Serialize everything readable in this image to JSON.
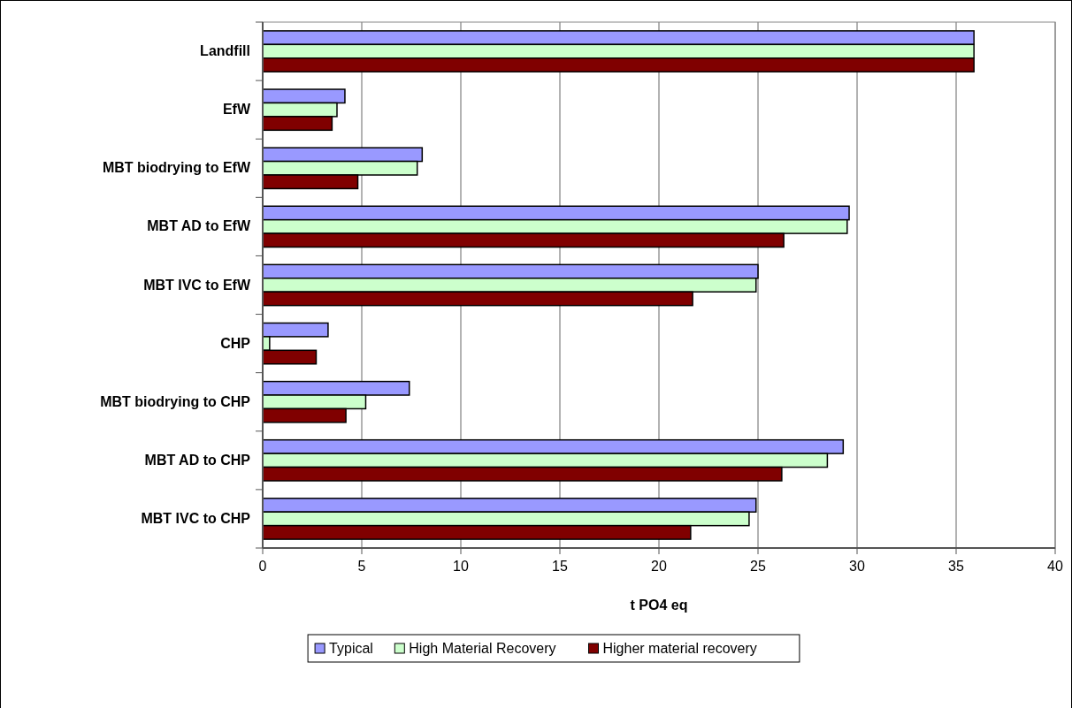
{
  "chart_data": {
    "type": "bar",
    "orientation": "horizontal",
    "xlabel": "t PO4 eq",
    "categories": [
      "Landfill",
      "EfW",
      "MBT biodrying to EfW",
      "MBT AD to EfW",
      "MBT IVC to EfW",
      "CHP",
      "MBT biodrying to CHP",
      "MBT AD to CHP",
      "MBT IVC to CHP"
    ],
    "series": [
      {
        "name": "Typical",
        "color": "#9999ff",
        "values": [
          35.9,
          4.15,
          8.05,
          29.6,
          25.0,
          3.3,
          7.4,
          29.3,
          24.9
        ]
      },
      {
        "name": "High Material Recovery",
        "color": "#ccffcc",
        "values": [
          35.9,
          3.75,
          7.8,
          29.5,
          24.9,
          0.35,
          5.2,
          28.5,
          24.55
        ]
      },
      {
        "name": "Higher material recovery",
        "color": "#800000",
        "values": [
          35.9,
          3.5,
          4.8,
          26.3,
          21.7,
          2.7,
          4.2,
          26.2,
          21.6
        ]
      }
    ],
    "xlim": [
      0,
      40
    ],
    "xticks": [
      0,
      5,
      10,
      15,
      20,
      25,
      30,
      35,
      40
    ],
    "grid": "x",
    "legend": "bottom"
  }
}
